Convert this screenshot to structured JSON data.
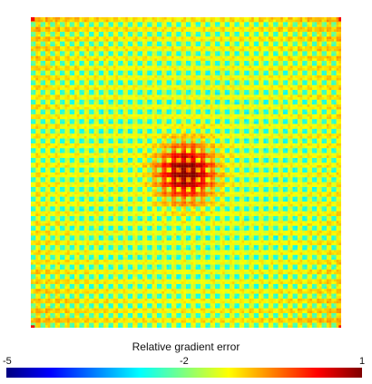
{
  "chart_data": {
    "type": "heatmap",
    "title": "",
    "grid": false,
    "grid_cells_per_side": 32,
    "peak_location": "center",
    "base_level": -1.6,
    "peak_level": 0.9,
    "colorbar": {
      "label": "Relative gradient error",
      "min": -5,
      "mid": -2,
      "max": 1,
      "tick_labels": [
        "-5",
        "-2",
        "1"
      ],
      "colormap": "jet",
      "placement": "bottom"
    },
    "colors": [
      "#00007f",
      "#0000ff",
      "#007fff",
      "#00ffff",
      "#7fff7f",
      "#ffff00",
      "#ff7f00",
      "#ff0000",
      "#7f0000"
    ]
  }
}
